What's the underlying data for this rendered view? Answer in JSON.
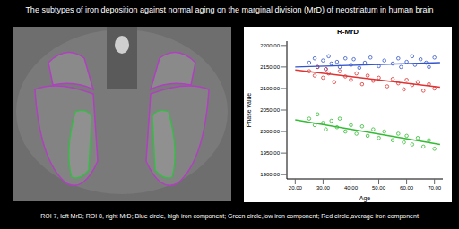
{
  "title": "The subtypes of iron deposition against normal aging on the marginal division (MrD) of neostriatum in human brain",
  "caption": "ROI 7, left MrD; ROI 8, right MrD; Blue circle, high iron component; Green circle,low iron component; Red circle,average iron component",
  "chart_data": {
    "type": "scatter",
    "title": "R-MrD",
    "x_label": "Age",
    "y_label": "Phase value",
    "xlim": [
      17,
      73
    ],
    "xticks": [
      {
        "value": 20,
        "label": "20.00"
      },
      {
        "value": 30,
        "label": "30.00"
      },
      {
        "value": 40,
        "label": "40.00"
      },
      {
        "value": 50,
        "label": "50.00"
      },
      {
        "value": 60,
        "label": "60.00"
      },
      {
        "value": 70,
        "label": "70.00"
      }
    ],
    "ylim": [
      1890,
      2210
    ],
    "yticks": [
      {
        "value": 1900,
        "label": "1900.00"
      },
      {
        "value": 1950,
        "label": "1950.00"
      },
      {
        "value": 2000,
        "label": "2000.00"
      },
      {
        "value": 2050,
        "label": "2050.00"
      },
      {
        "value": 2100,
        "label": "2100.00"
      },
      {
        "value": 2150,
        "label": "2150.00"
      },
      {
        "value": 2200,
        "label": "2200.00"
      }
    ],
    "grid": false,
    "marker": "circle",
    "series": [
      {
        "color": "#3355cc",
        "x": [
          25,
          27,
          28,
          30,
          31,
          32,
          33,
          35,
          36,
          38,
          40,
          41,
          43,
          45,
          47,
          50,
          52,
          55,
          57,
          58,
          60,
          62,
          63,
          65,
          67,
          68,
          70
        ],
        "values": [
          2160,
          2170,
          2150,
          2165,
          2145,
          2175,
          2158,
          2162,
          2150,
          2170,
          2155,
          2168,
          2148,
          2160,
          2172,
          2152,
          2165,
          2158,
          2170,
          2150,
          2162,
          2175,
          2155,
          2168,
          2160,
          2150,
          2172
        ],
        "fit_x": [
          20,
          72
        ],
        "fit_values": [
          2150,
          2160
        ]
      },
      {
        "color": "#dd3333",
        "x": [
          25,
          27,
          28,
          30,
          31,
          32,
          34,
          36,
          38,
          40,
          42,
          44,
          46,
          48,
          50,
          53,
          55,
          57,
          59,
          60,
          62,
          64,
          66,
          68,
          70
        ],
        "values": [
          2140,
          2130,
          2150,
          2125,
          2145,
          2135,
          2115,
          2140,
          2128,
          2120,
          2135,
          2110,
          2130,
          2118,
          2125,
          2105,
          2122,
          2112,
          2098,
          2120,
          2108,
          2115,
          2095,
          2110,
          2100
        ],
        "fit_x": [
          20,
          72
        ],
        "fit_values": [
          2143,
          2103
        ]
      },
      {
        "color": "#33bb33",
        "x": [
          25,
          27,
          28,
          30,
          31,
          33,
          35,
          36,
          38,
          40,
          42,
          44,
          46,
          48,
          50,
          52,
          55,
          57,
          59,
          60,
          62,
          64,
          66,
          68,
          70
        ],
        "values": [
          2030,
          2015,
          2040,
          2020,
          2005,
          2025,
          2010,
          2030,
          2000,
          2015,
          1995,
          2012,
          1990,
          2005,
          1985,
          2000,
          1980,
          1995,
          1975,
          1990,
          1970,
          1985,
          1965,
          1980,
          1960
        ],
        "fit_x": [
          20,
          72
        ],
        "fit_values": [
          2027,
          1970
        ]
      }
    ]
  }
}
